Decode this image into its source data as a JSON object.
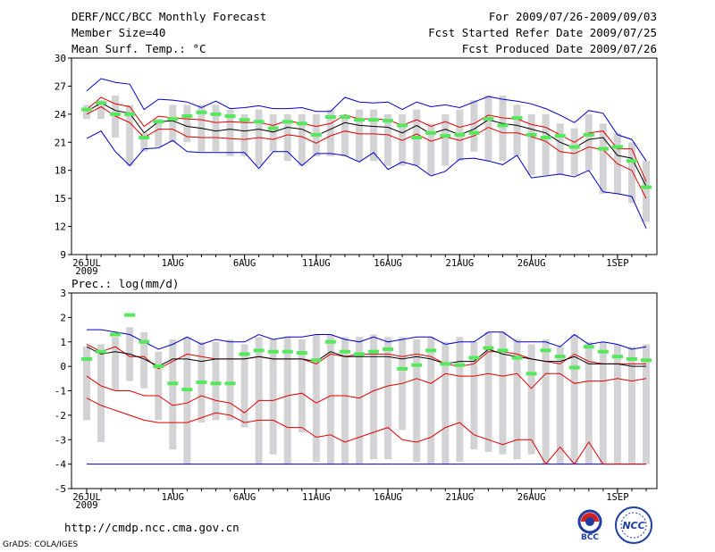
{
  "header": {
    "title": "DERF/NCC/BCC Monthly Forecast",
    "member_size": "Member Size=40",
    "variable": "Mean Surf. Temp.: °C",
    "period": "For 2009/07/26-2009/09/03",
    "started": "Fcst Started Refer Date 2009/07/25",
    "produced": "Fcst Produced Date 2009/07/26"
  },
  "footer": {
    "url": "http://cmdp.ncc.cma.gov.cn",
    "grads": "GrADS: COLA/IGES",
    "logo_bcc": "BCC",
    "logo_ncc": "NCC"
  },
  "colors": {
    "box": "#d3d3d6",
    "mean_marker": "#55e85a",
    "outer_line": "#0000c8",
    "inner_line": "#e00000",
    "median_line": "#000000"
  },
  "chart_data": [
    {
      "type": "line",
      "title": "Mean Surf. Temp.: °C",
      "ylim": [
        9,
        30
      ],
      "yticks": [
        9,
        12,
        15,
        18,
        21,
        24,
        27,
        30
      ],
      "xlabel_ticks": [
        "26JUL",
        "1AUG",
        "6AUG",
        "11AUG",
        "16AUG",
        "21AUG",
        "26AUG",
        "1SEP"
      ],
      "year_label": "2009",
      "days": [
        "07/26",
        "07/27",
        "07/28",
        "07/29",
        "07/30",
        "07/31",
        "08/01",
        "08/02",
        "08/03",
        "08/04",
        "08/05",
        "08/06",
        "08/07",
        "08/08",
        "08/09",
        "08/10",
        "08/11",
        "08/12",
        "08/13",
        "08/14",
        "08/15",
        "08/16",
        "08/17",
        "08/18",
        "08/19",
        "08/20",
        "08/21",
        "08/22",
        "08/23",
        "08/24",
        "08/25",
        "08/26",
        "08/27",
        "08/28",
        "08/29",
        "08/30",
        "08/31",
        "09/01",
        "09/02",
        "09/03"
      ],
      "series": [
        {
          "name": "max",
          "values": [
            26.5,
            27.8,
            27.4,
            27.2,
            24.5,
            25.6,
            25.5,
            25.3,
            24.7,
            25.4,
            24.6,
            24.7,
            24.9,
            24.6,
            24.6,
            24.7,
            24.3,
            24.3,
            25.8,
            25.3,
            25.2,
            25.3,
            24.5,
            25.3,
            24.8,
            25.0,
            24.7,
            25.3,
            25.9,
            25.6,
            25.4,
            25.1,
            24.6,
            23.9,
            23.1,
            24.4,
            24.1,
            21.8,
            21.3,
            19.0
          ]
        },
        {
          "name": "upper",
          "values": [
            24.5,
            25.8,
            25.1,
            24.8,
            22.7,
            23.8,
            23.6,
            23.5,
            23.4,
            23.1,
            23.2,
            23.1,
            23.1,
            22.8,
            23.3,
            23.0,
            22.7,
            23.0,
            23.9,
            23.5,
            23.5,
            23.4,
            22.8,
            23.4,
            22.7,
            23.2,
            22.6,
            23.0,
            23.9,
            23.6,
            23.5,
            22.9,
            22.6,
            21.8,
            21.0,
            22.0,
            22.2,
            20.3,
            20.3,
            16.8
          ]
        },
        {
          "name": "median",
          "values": [
            24.3,
            25.2,
            24.4,
            24.1,
            22.0,
            23.2,
            23.3,
            22.7,
            22.5,
            22.2,
            22.4,
            22.2,
            22.4,
            22.1,
            22.6,
            22.4,
            21.7,
            22.4,
            23.1,
            22.8,
            22.7,
            22.6,
            22.0,
            22.8,
            21.9,
            22.4,
            21.8,
            22.4,
            23.4,
            23.0,
            22.8,
            22.4,
            22.0,
            21.0,
            20.4,
            21.3,
            21.5,
            19.6,
            19.3,
            16.3
          ]
        },
        {
          "name": "lower",
          "values": [
            24.0,
            24.8,
            23.8,
            23.1,
            21.5,
            22.4,
            22.4,
            21.6,
            21.5,
            21.5,
            21.4,
            21.3,
            21.5,
            21.3,
            21.8,
            21.6,
            20.9,
            21.7,
            22.2,
            21.9,
            21.9,
            21.8,
            21.2,
            21.9,
            21.1,
            21.6,
            21.2,
            21.7,
            22.6,
            22.0,
            22.0,
            21.6,
            21.1,
            20.0,
            19.8,
            20.5,
            20.2,
            18.7,
            18.0,
            15.0
          ]
        },
        {
          "name": "min",
          "values": [
            21.4,
            22.2,
            20.0,
            18.5,
            20.3,
            20.4,
            21.2,
            20.0,
            19.9,
            19.9,
            19.9,
            19.9,
            18.2,
            20.0,
            20.0,
            18.5,
            19.8,
            19.8,
            19.6,
            18.9,
            19.9,
            18.1,
            18.9,
            18.5,
            17.4,
            17.9,
            19.2,
            19.3,
            19.0,
            18.6,
            19.6,
            17.2,
            17.4,
            17.6,
            17.3,
            18.0,
            15.7,
            15.5,
            15.2,
            11.8
          ]
        },
        {
          "name": "box_high",
          "values": [
            25.0,
            25.5,
            26.0,
            25.0,
            22.0,
            23.5,
            25.0,
            25.0,
            25.0,
            25.0,
            24.5,
            24.0,
            24.5,
            24.0,
            24.0,
            24.0,
            24.0,
            24.5,
            24.0,
            24.5,
            24.5,
            24.0,
            24.0,
            24.5,
            23.0,
            24.0,
            24.5,
            25.5,
            26.0,
            26.0,
            25.0,
            24.0,
            24.0,
            23.0,
            22.5,
            24.0,
            23.0,
            22.0,
            21.0,
            19.0
          ]
        },
        {
          "name": "box_low",
          "values": [
            23.5,
            23.5,
            21.5,
            18.5,
            20.0,
            20.5,
            21.0,
            21.0,
            20.0,
            20.0,
            19.5,
            19.5,
            18.5,
            20.0,
            19.0,
            18.5,
            19.5,
            19.5,
            19.5,
            19.0,
            19.0,
            18.5,
            18.5,
            18.5,
            17.5,
            18.5,
            19.0,
            20.0,
            19.0,
            19.0,
            19.5,
            17.5,
            17.5,
            17.5,
            17.5,
            18.0,
            15.5,
            15.5,
            14.5,
            12.5
          ]
        },
        {
          "name": "ensemble_mean",
          "values": [
            24.5,
            25.2,
            24.0,
            24.0,
            21.5,
            23.2,
            23.5,
            23.8,
            24.2,
            24.0,
            23.8,
            23.4,
            23.2,
            22.5,
            23.2,
            23.0,
            21.8,
            23.7,
            23.7,
            23.4,
            23.4,
            23.3,
            22.8,
            21.5,
            22.0,
            21.7,
            21.8,
            22.0,
            23.5,
            22.8,
            23.6,
            21.8,
            21.5,
            21.7,
            20.5,
            21.8,
            20.3,
            20.5,
            19.0,
            16.2
          ]
        }
      ]
    },
    {
      "type": "line",
      "title": "Prec.: log(mm/d)",
      "ylim": [
        -5,
        3
      ],
      "yticks": [
        -5,
        -4,
        -3,
        -2,
        -1,
        0,
        1,
        2,
        3
      ],
      "xlabel_ticks": [
        "26JUL",
        "1AUG",
        "6AUG",
        "11AUG",
        "16AUG",
        "21AUG",
        "26AUG",
        "1SEP"
      ],
      "year_label": "2009",
      "days": [
        "07/26",
        "07/27",
        "07/28",
        "07/29",
        "07/30",
        "07/31",
        "08/01",
        "08/02",
        "08/03",
        "08/04",
        "08/05",
        "08/06",
        "08/07",
        "08/08",
        "08/09",
        "08/10",
        "08/11",
        "08/12",
        "08/13",
        "08/14",
        "08/15",
        "08/16",
        "08/17",
        "08/18",
        "08/19",
        "08/20",
        "08/21",
        "08/22",
        "08/23",
        "08/24",
        "08/25",
        "08/26",
        "08/27",
        "08/28",
        "08/29",
        "08/30",
        "08/31",
        "09/01",
        "09/02",
        "09/03"
      ],
      "series": [
        {
          "name": "max",
          "values": [
            1.5,
            1.5,
            1.4,
            1.3,
            1.0,
            0.7,
            0.9,
            1.2,
            0.9,
            1.1,
            1.0,
            1.0,
            1.3,
            1.1,
            1.2,
            1.2,
            1.3,
            1.3,
            1.1,
            1.0,
            1.2,
            1.0,
            1.1,
            1.2,
            1.2,
            0.9,
            1.0,
            1.0,
            1.4,
            1.4,
            1.0,
            1.0,
            1.0,
            0.8,
            1.3,
            0.9,
            1.0,
            0.9,
            0.7,
            0.8
          ]
        },
        {
          "name": "upper",
          "values": [
            0.9,
            0.6,
            0.8,
            0.4,
            0.4,
            -0.1,
            0.2,
            0.5,
            0.4,
            0.3,
            0.3,
            0.3,
            0.4,
            0.3,
            0.3,
            0.3,
            0.1,
            0.5,
            0.4,
            0.5,
            0.5,
            0.5,
            0.4,
            0.5,
            0.4,
            0.1,
            0.0,
            0.1,
            0.6,
            0.6,
            0.5,
            0.3,
            0.2,
            0.1,
            0.5,
            0.2,
            0.1,
            0.1,
            0.1,
            0.1
          ]
        },
        {
          "name": "median",
          "values": [
            0.8,
            0.5,
            0.6,
            0.5,
            0.3,
            0.0,
            0.3,
            0.3,
            0.2,
            0.3,
            0.3,
            0.3,
            0.4,
            0.3,
            0.3,
            0.3,
            0.2,
            0.6,
            0.4,
            0.4,
            0.4,
            0.4,
            0.3,
            0.4,
            0.3,
            0.1,
            0.2,
            0.2,
            0.7,
            0.5,
            0.4,
            0.3,
            0.2,
            0.2,
            0.4,
            0.1,
            0.1,
            0.1,
            0.0,
            0.0
          ]
        },
        {
          "name": "lower",
          "values": [
            -0.4,
            -0.8,
            -1.0,
            -1.0,
            -1.2,
            -1.2,
            -1.6,
            -1.5,
            -1.2,
            -1.4,
            -1.5,
            -1.9,
            -1.4,
            -1.4,
            -1.2,
            -1.1,
            -1.5,
            -1.2,
            -1.2,
            -1.3,
            -1.0,
            -0.8,
            -0.7,
            -0.5,
            -0.7,
            -0.3,
            -0.4,
            -0.4,
            -0.3,
            -0.4,
            -0.3,
            -0.9,
            -0.3,
            -0.3,
            -0.7,
            -0.6,
            -0.6,
            -0.5,
            -0.6,
            -0.5
          ]
        },
        {
          "name": "min",
          "values": [
            -4,
            -4,
            -4,
            -4,
            -4,
            -4,
            -4,
            -4,
            -4,
            -4,
            -4,
            -4,
            -4,
            -4,
            -4,
            -4,
            -4,
            -4,
            -4,
            -4,
            -4,
            -4,
            -4,
            -4,
            -4,
            -4,
            -4,
            -4,
            -4,
            -4,
            -4,
            -4,
            -4,
            -4,
            -4,
            -4,
            -4,
            -4,
            -4,
            -4
          ]
        },
        {
          "name": "min_member",
          "values": [
            -4,
            -4,
            -4,
            -4,
            -4,
            -4,
            -4,
            -4,
            -4,
            -4,
            -4,
            -4,
            -4,
            -4,
            -4,
            -4,
            -4,
            -4,
            -4,
            -4,
            -4,
            -4,
            -4,
            -4,
            -4,
            -4,
            -4,
            -4,
            -4,
            -4,
            -4,
            -4,
            -4,
            -4,
            -4,
            -4,
            -4,
            -4,
            -4,
            -4
          ]
        },
        {
          "name": "low_percentile",
          "values": [
            -1.3,
            -1.6,
            -1.8,
            -2.0,
            -2.2,
            -2.3,
            -2.3,
            -2.3,
            -2.1,
            -1.9,
            -2.0,
            -2.3,
            -2.2,
            -2.2,
            -2.5,
            -2.5,
            -2.9,
            -2.8,
            -3.1,
            -2.9,
            -2.7,
            -2.5,
            -3.0,
            -3.1,
            -2.9,
            -2.5,
            -2.3,
            -2.8,
            -3.0,
            -3.2,
            -3.0,
            -3.0,
            -4.0,
            -3.3,
            -4.0,
            -3.1,
            -4.0,
            -4.0,
            -4.0,
            -4.0
          ]
        },
        {
          "name": "box_high",
          "values": [
            0.8,
            0.9,
            1.2,
            1.6,
            1.4,
            0.6,
            1.1,
            1.2,
            1.0,
            1.0,
            1.1,
            0.9,
            1.2,
            1.1,
            1.2,
            1.1,
            1.3,
            1.3,
            1.2,
            1.2,
            1.3,
            1.2,
            1.2,
            1.1,
            1.2,
            1.0,
            1.2,
            1.0,
            1.4,
            1.4,
            1.1,
            0.9,
            1.1,
            0.8,
            1.3,
            1.0,
            1.0,
            0.9,
            0.8,
            0.9
          ]
        },
        {
          "name": "box_low",
          "values": [
            -2.2,
            -3.1,
            -1.0,
            -0.6,
            -0.9,
            -2.2,
            -3.4,
            -4.0,
            -2.3,
            -2.2,
            -2.2,
            -2.5,
            -4.0,
            -3.6,
            -4.0,
            -2.7,
            -3.9,
            -4.0,
            -4.0,
            -4.0,
            -3.8,
            -3.8,
            -2.6,
            -3.9,
            -4.0,
            -4.0,
            -3.9,
            -3.4,
            -3.5,
            -3.6,
            -3.8,
            -3.6,
            -4.0,
            -4.0,
            -4.0,
            -4.0,
            -4.0,
            -4.0,
            -4.0,
            -4.0
          ]
        },
        {
          "name": "ensemble_mean",
          "values": [
            0.3,
            0.6,
            1.3,
            2.1,
            1.0,
            0.0,
            -0.7,
            -0.95,
            -0.65,
            -0.7,
            -0.7,
            0.5,
            0.65,
            0.6,
            0.6,
            0.55,
            0.25,
            1.0,
            0.6,
            0.5,
            0.6,
            0.7,
            -0.1,
            0.05,
            0.65,
            0.1,
            0.05,
            0.35,
            0.75,
            0.65,
            0.35,
            -0.3,
            0.65,
            0.4,
            -0.05,
            0.8,
            0.6,
            0.4,
            0.3,
            0.25
          ]
        }
      ]
    }
  ]
}
